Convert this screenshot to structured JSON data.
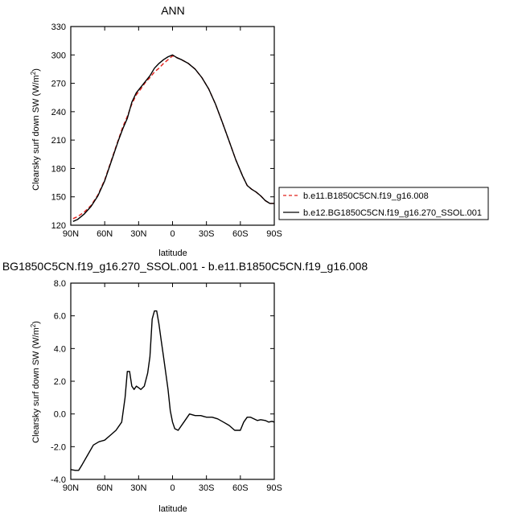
{
  "chart_data": [
    {
      "type": "line",
      "title": "ANN",
      "xlabel": "latitude",
      "ylabel": "Clearsky surf down SW (W/m²)",
      "ylabel_main": "Clearsky surf down SW (W/m",
      "ylabel_sup": "2",
      "ylabel_end": ")",
      "xlim": [
        90,
        -90
      ],
      "ylim": [
        120,
        330
      ],
      "x_ticks": [
        90,
        60,
        30,
        0,
        -30,
        -60,
        -90
      ],
      "x_tick_labels": [
        "90N",
        "60N",
        "30N",
        "0",
        "30S",
        "60S",
        "90S"
      ],
      "y_ticks": [
        120,
        150,
        180,
        210,
        240,
        270,
        300,
        330
      ],
      "y_tick_labels": [
        "120",
        "150",
        "180",
        "210",
        "240",
        "270",
        "300",
        "330"
      ],
      "legend_placement": "right",
      "series": [
        {
          "name": "b.e11.B1850C5CN.f19_g16.008",
          "color": "#e0201b",
          "dash": "dashed",
          "x": [
            88,
            84,
            78,
            72,
            66,
            60,
            54,
            48,
            44,
            40,
            36,
            32,
            28,
            24,
            20,
            16,
            12,
            8,
            4,
            0,
            -4,
            -8,
            -14,
            -20,
            -26,
            -32,
            -38,
            -44,
            -50,
            -56,
            -62,
            -66,
            -70,
            -74,
            -78,
            -82,
            -86,
            -90
          ],
          "y": [
            127,
            129,
            134,
            141,
            152,
            168,
            189,
            210,
            224,
            235,
            248,
            258,
            264,
            271,
            276,
            282,
            286,
            291,
            295,
            299,
            297,
            295,
            291,
            285,
            276,
            264,
            248,
            229,
            209,
            189,
            172,
            162,
            158,
            155,
            151,
            146,
            143,
            143
          ]
        },
        {
          "name": "b.e12.BG1850C5CN.f19_g16.270_SSOL.001",
          "color": "#000000",
          "dash": "solid",
          "x": [
            88,
            84,
            78,
            72,
            66,
            60,
            54,
            48,
            44,
            40,
            36,
            32,
            28,
            24,
            20,
            16,
            12,
            8,
            4,
            0,
            -4,
            -8,
            -14,
            -20,
            -26,
            -32,
            -38,
            -44,
            -50,
            -56,
            -62,
            -66,
            -70,
            -74,
            -78,
            -82,
            -86,
            -90
          ],
          "y": [
            124,
            126,
            132,
            140,
            151,
            167,
            188,
            209,
            222,
            233,
            250,
            260,
            266,
            272,
            278,
            286,
            291,
            295,
            298,
            300,
            297,
            295,
            291,
            285,
            276,
            264,
            248,
            229,
            209,
            189,
            172,
            162,
            158,
            155,
            151,
            146,
            143,
            143
          ]
        }
      ]
    },
    {
      "type": "line",
      "title": "BG1850C5CN.f19_g16.270_SSOL.001 - b.e11.B1850C5CN.f19_g16.008",
      "xlabel": "latitude",
      "ylabel": "Clearsky surf down SW (W/m²)",
      "ylabel_main": "Clearsky surf down SW (W/m",
      "ylabel_sup": "2",
      "ylabel_end": ")",
      "xlim": [
        90,
        -90
      ],
      "ylim": [
        -4,
        8
      ],
      "x_ticks": [
        90,
        60,
        30,
        0,
        -30,
        -60,
        -90
      ],
      "x_tick_labels": [
        "90N",
        "60N",
        "30N",
        "0",
        "30S",
        "60S",
        "90S"
      ],
      "y_ticks": [
        -4,
        -2,
        0,
        2,
        4,
        6,
        8
      ],
      "y_tick_labels": [
        "-4.0",
        "-2.0",
        "0.0",
        "2.0",
        "4.0",
        "6.0",
        "8.0"
      ],
      "series": [
        {
          "color": "#000000",
          "dash": "solid",
          "x": [
            90,
            86,
            83,
            80,
            75,
            70,
            65,
            60,
            55,
            50,
            45,
            42,
            40,
            38,
            36,
            34,
            32,
            30,
            28,
            25,
            22,
            20,
            18,
            16,
            14,
            12,
            10,
            8,
            6,
            4,
            2,
            0,
            -2,
            -5,
            -10,
            -15,
            -20,
            -25,
            -30,
            -35,
            -40,
            -45,
            -50,
            -55,
            -60,
            -63,
            -66,
            -69,
            -72,
            -75,
            -78,
            -82,
            -85,
            -88,
            -90
          ],
          "y": [
            -3.4,
            -3.45,
            -3.45,
            -3.1,
            -2.5,
            -1.9,
            -1.7,
            -1.6,
            -1.3,
            -1.0,
            -0.5,
            1.0,
            2.6,
            2.6,
            1.7,
            1.5,
            1.7,
            1.6,
            1.5,
            1.7,
            2.5,
            3.5,
            5.8,
            6.3,
            6.3,
            5.5,
            4.5,
            3.5,
            2.5,
            1.5,
            0.2,
            -0.5,
            -0.9,
            -1.0,
            -0.5,
            0.0,
            -0.1,
            -0.1,
            -0.2,
            -0.2,
            -0.3,
            -0.5,
            -0.7,
            -1.0,
            -1.0,
            -0.5,
            -0.2,
            -0.2,
            -0.3,
            -0.4,
            -0.35,
            -0.4,
            -0.5,
            -0.45,
            -0.5
          ]
        }
      ]
    }
  ]
}
